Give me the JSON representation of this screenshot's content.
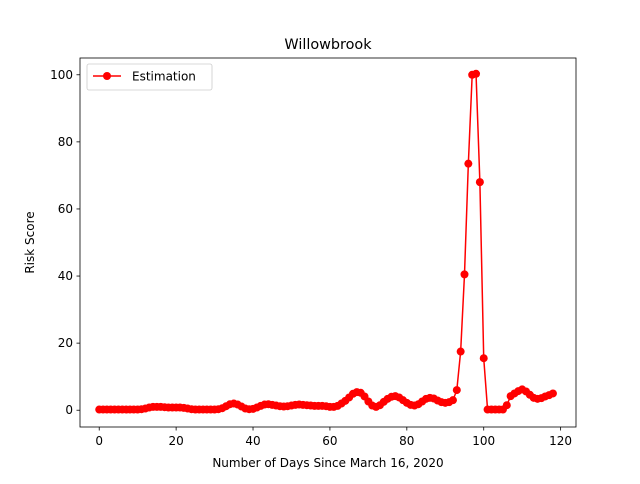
{
  "chart_data": {
    "type": "line",
    "title": "Willowbrook",
    "xlabel": "Number of Days Since March 16, 2020",
    "ylabel": "Risk Score",
    "xlim": [
      -5,
      124
    ],
    "ylim": [
      -5,
      105
    ],
    "xticks": [
      0,
      20,
      40,
      60,
      80,
      100,
      120
    ],
    "yticks": [
      0,
      20,
      40,
      60,
      80,
      100
    ],
    "grid": false,
    "legend_position": "upper-left",
    "series": [
      {
        "name": "Estimation",
        "color": "#ff0000",
        "marker": "circle",
        "x": [
          0,
          1,
          2,
          3,
          4,
          5,
          6,
          7,
          8,
          9,
          10,
          11,
          12,
          13,
          14,
          15,
          16,
          17,
          18,
          19,
          20,
          21,
          22,
          23,
          24,
          25,
          26,
          27,
          28,
          29,
          30,
          31,
          32,
          33,
          34,
          35,
          36,
          37,
          38,
          39,
          40,
          41,
          42,
          43,
          44,
          45,
          46,
          47,
          48,
          49,
          50,
          51,
          52,
          53,
          54,
          55,
          56,
          57,
          58,
          59,
          60,
          61,
          62,
          63,
          64,
          65,
          66,
          67,
          68,
          69,
          70,
          71,
          72,
          73,
          74,
          75,
          76,
          77,
          78,
          79,
          80,
          81,
          82,
          83,
          84,
          85,
          86,
          87,
          88,
          89,
          90,
          91,
          92,
          93,
          94,
          95,
          96,
          97,
          98,
          99,
          100,
          101,
          102,
          103,
          104,
          105,
          106,
          107,
          108,
          109,
          110,
          111,
          112,
          113,
          114,
          115,
          116,
          117,
          118
        ],
        "y": [
          0.2,
          0.2,
          0.2,
          0.2,
          0.2,
          0.2,
          0.2,
          0.2,
          0.2,
          0.2,
          0.2,
          0.3,
          0.5,
          0.8,
          1.0,
          1.0,
          1.0,
          0.9,
          0.8,
          0.8,
          0.8,
          0.8,
          0.7,
          0.5,
          0.3,
          0.2,
          0.2,
          0.2,
          0.2,
          0.2,
          0.2,
          0.3,
          0.6,
          1.2,
          1.8,
          2.0,
          1.7,
          1.1,
          0.5,
          0.3,
          0.4,
          0.8,
          1.3,
          1.7,
          1.8,
          1.6,
          1.4,
          1.2,
          1.1,
          1.2,
          1.4,
          1.6,
          1.7,
          1.6,
          1.5,
          1.4,
          1.3,
          1.3,
          1.3,
          1.2,
          1.0,
          1.0,
          1.3,
          2.0,
          2.8,
          3.8,
          4.9,
          5.4,
          5.2,
          4.1,
          2.6,
          1.4,
          1.0,
          1.5,
          2.5,
          3.4,
          4.0,
          4.2,
          3.8,
          3.0,
          2.2,
          1.6,
          1.4,
          1.8,
          2.6,
          3.4,
          3.7,
          3.5,
          2.9,
          2.4,
          2.2,
          2.4,
          3.0,
          6.0,
          17.5,
          40.5,
          73.5,
          100.0,
          100.3,
          68.0,
          15.5,
          0.2,
          0.2,
          0.2,
          0.2,
          0.2,
          1.5,
          4.2,
          5.0,
          5.7,
          6.2,
          5.6,
          4.6,
          3.7,
          3.4,
          3.6,
          4.1,
          4.5,
          5.0
        ]
      }
    ]
  }
}
